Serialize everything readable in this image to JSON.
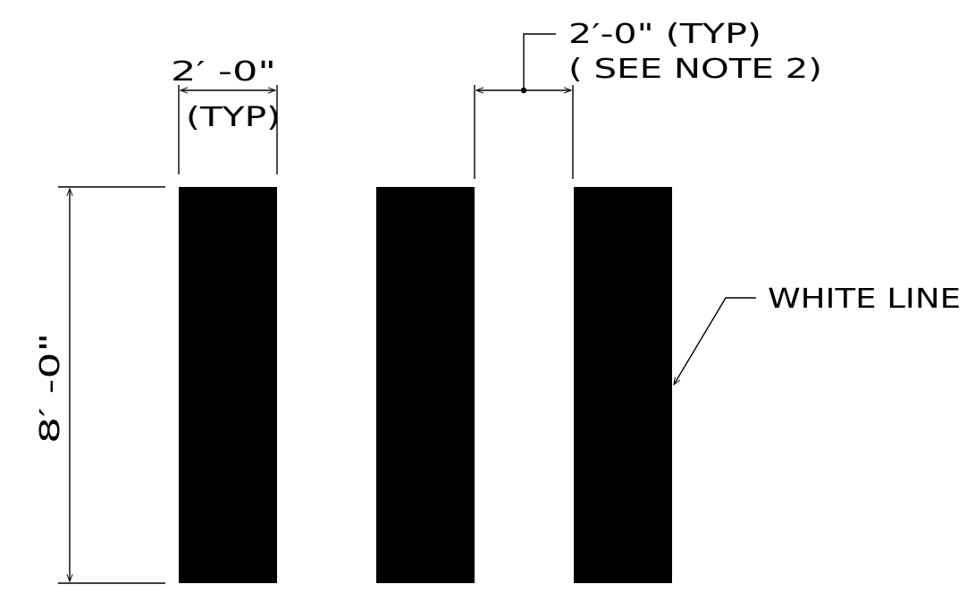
{
  "colors": {
    "background": "#ffffff",
    "ink": "#000000"
  },
  "dimensions": {
    "bar_width_value": "2′ -0\"",
    "bar_width_qualifier": "(TYP)",
    "gap_width_value": "2′-0\" (TYP)",
    "gap_width_note": "( SEE NOTE 2)",
    "bar_length_value": "8′ -0\""
  },
  "labels": {
    "white_line": "WHITE LINE"
  }
}
